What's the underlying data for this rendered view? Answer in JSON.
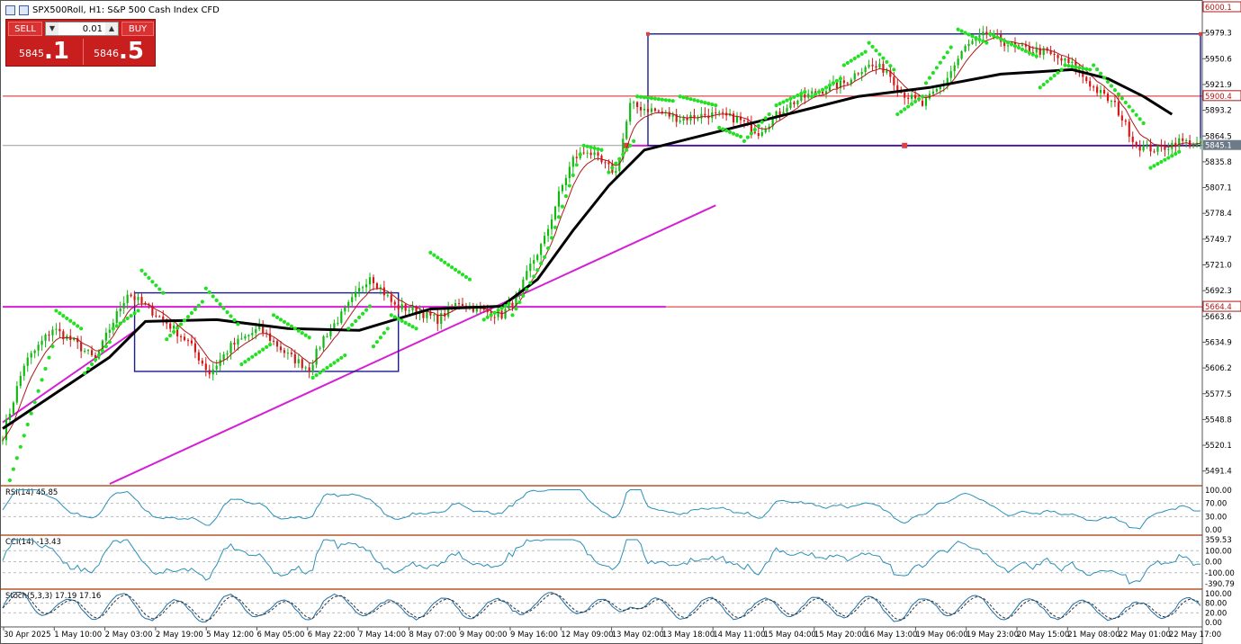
{
  "header": {
    "title": "SPX500Roll, H1:  S&P 500 Cash Index CFD"
  },
  "trade_panel": {
    "sell_label": "SELL",
    "buy_label": "BUY",
    "volume": "0.01",
    "bid_small": "5845",
    "bid_big": ".1",
    "ask_small": "5846",
    "ask_big": ".5"
  },
  "colors": {
    "bull": "#11b811",
    "bear": "#d01a1a",
    "sar": "#22e022",
    "ma_slow": "#000000",
    "ma_fast": "#b01818",
    "trendline": "#d51fd5",
    "box": "#1c1c94",
    "osc": "#2a8fb8"
  },
  "price_axis": {
    "labels": [
      "6000.1",
      "5979.3",
      "5950.6",
      "5921.9",
      "5893.2",
      "5864.5",
      "5835.8",
      "5807.1",
      "5778.4",
      "5749.7",
      "5721.0",
      "5692.3",
      "5663.6",
      "5634.9",
      "5606.2",
      "5577.5",
      "5548.8",
      "5520.1",
      "5491.4"
    ],
    "current_price": "5845.1",
    "level_5900": "5900.4",
    "level_5664": "5664.4"
  },
  "time_axis": {
    "labels": [
      "30 Apr 2025",
      "1 May 10:00",
      "2 May 03:00",
      "2 May 19:00",
      "5 May 12:00",
      "6 May 05:00",
      "6 May 22:00",
      "7 May 14:00",
      "8 May 07:00",
      "9 May 00:00",
      "9 May 16:00",
      "12 May 09:00",
      "13 May 02:00",
      "13 May 18:00",
      "14 May 11:00",
      "15 May 04:00",
      "15 May 20:00",
      "16 May 13:00",
      "19 May 06:00",
      "19 May 23:00",
      "20 May 15:00",
      "21 May 08:00",
      "22 May 01:00",
      "22 May 17:00"
    ]
  },
  "indicators": {
    "rsi": {
      "label": "RSI(14) 45.85",
      "levels": [
        "100.00",
        "70.00",
        "30.00",
        "0.00"
      ]
    },
    "cci": {
      "label": "CCI(14) -13.43",
      "levels": [
        "359.53",
        "100.00",
        "0.00",
        "-100.00",
        "-390.79"
      ]
    },
    "stoch": {
      "label": "Stoch(5,3,3) 17.19 17.16",
      "levels": [
        "100.00",
        "80.00",
        "20.00",
        "0.00"
      ]
    }
  },
  "chart_data": {
    "type": "candlestick",
    "symbol": "SPX500Roll",
    "timeframe": "H1",
    "ylim": [
      5466,
      6005
    ],
    "anchors": [
      [
        0,
        5520
      ],
      [
        6,
        5600
      ],
      [
        14,
        5640
      ],
      [
        20,
        5625
      ],
      [
        26,
        5605
      ],
      [
        30,
        5640
      ],
      [
        35,
        5680
      ],
      [
        40,
        5665
      ],
      [
        45,
        5650
      ],
      [
        52,
        5625
      ],
      [
        58,
        5590
      ],
      [
        64,
        5620
      ],
      [
        72,
        5640
      ],
      [
        80,
        5610
      ],
      [
        86,
        5595
      ],
      [
        90,
        5630
      ],
      [
        96,
        5660
      ],
      [
        103,
        5700
      ],
      [
        110,
        5665
      ],
      [
        116,
        5660
      ],
      [
        122,
        5650
      ],
      [
        128,
        5670
      ],
      [
        134,
        5660
      ],
      [
        140,
        5655
      ],
      [
        145,
        5680
      ],
      [
        148,
        5710
      ],
      [
        152,
        5740
      ],
      [
        156,
        5790
      ],
      [
        160,
        5830
      ],
      [
        164,
        5840
      ],
      [
        168,
        5825
      ],
      [
        172,
        5815
      ],
      [
        176,
        5890
      ],
      [
        182,
        5885
      ],
      [
        190,
        5875
      ],
      [
        198,
        5880
      ],
      [
        206,
        5875
      ],
      [
        212,
        5860
      ],
      [
        220,
        5890
      ],
      [
        228,
        5905
      ],
      [
        236,
        5915
      ],
      [
        242,
        5935
      ],
      [
        248,
        5930
      ],
      [
        252,
        5905
      ],
      [
        258,
        5890
      ],
      [
        264,
        5915
      ],
      [
        270,
        5955
      ],
      [
        276,
        5970
      ],
      [
        284,
        5955
      ],
      [
        292,
        5950
      ],
      [
        300,
        5935
      ],
      [
        306,
        5910
      ],
      [
        312,
        5890
      ],
      [
        318,
        5845
      ],
      [
        324,
        5840
      ],
      [
        330,
        5850
      ],
      [
        336,
        5845
      ]
    ],
    "ma_slow": [
      [
        0,
        5528
      ],
      [
        30,
        5608
      ],
      [
        40,
        5648
      ],
      [
        60,
        5650
      ],
      [
        80,
        5640
      ],
      [
        100,
        5638
      ],
      [
        120,
        5662
      ],
      [
        140,
        5665
      ],
      [
        150,
        5695
      ],
      [
        160,
        5750
      ],
      [
        170,
        5800
      ],
      [
        180,
        5840
      ],
      [
        200,
        5860
      ],
      [
        220,
        5880
      ],
      [
        240,
        5900
      ],
      [
        260,
        5910
      ],
      [
        280,
        5925
      ],
      [
        300,
        5930
      ],
      [
        310,
        5920
      ],
      [
        320,
        5900
      ],
      [
        328,
        5880
      ]
    ],
    "sar": [
      {
        "a": 2,
        "b": 14,
        "s": 5470,
        "e": 5620
      },
      {
        "a": 15,
        "b": 22,
        "s": 5660,
        "e": 5640
      },
      {
        "a": 23,
        "b": 30,
        "s": 5590,
        "e": 5625
      },
      {
        "a": 31,
        "b": 38,
        "s": 5640,
        "e": 5660
      },
      {
        "a": 39,
        "b": 45,
        "s": 5705,
        "e": 5680
      },
      {
        "a": 46,
        "b": 56,
        "s": 5628,
        "e": 5670
      },
      {
        "a": 57,
        "b": 66,
        "s": 5685,
        "e": 5645
      },
      {
        "a": 67,
        "b": 75,
        "s": 5600,
        "e": 5622
      },
      {
        "a": 76,
        "b": 86,
        "s": 5655,
        "e": 5630
      },
      {
        "a": 87,
        "b": 96,
        "s": 5585,
        "e": 5610
      },
      {
        "a": 97,
        "b": 103,
        "s": 5640,
        "e": 5665
      },
      {
        "a": 104,
        "b": 108,
        "s": 5620,
        "e": 5640
      },
      {
        "a": 109,
        "b": 116,
        "s": 5655,
        "e": 5640
      },
      {
        "a": 120,
        "b": 131,
        "s": 5725,
        "e": 5695
      },
      {
        "a": 135,
        "b": 142,
        "s": 5650,
        "e": 5668
      },
      {
        "a": 143,
        "b": 152,
        "s": 5655,
        "e": 5720
      },
      {
        "a": 153,
        "b": 162,
        "s": 5730,
        "e": 5835
      },
      {
        "a": 163,
        "b": 168,
        "s": 5845,
        "e": 5840
      },
      {
        "a": 170,
        "b": 177,
        "s": 5815,
        "e": 5850
      },
      {
        "a": 178,
        "b": 188,
        "s": 5900,
        "e": 5895
      },
      {
        "a": 190,
        "b": 200,
        "s": 5900,
        "e": 5890
      },
      {
        "a": 201,
        "b": 207,
        "s": 5865,
        "e": 5855
      },
      {
        "a": 208,
        "b": 215,
        "s": 5850,
        "e": 5880
      },
      {
        "a": 217,
        "b": 225,
        "s": 5890,
        "e": 5905
      },
      {
        "a": 227,
        "b": 235,
        "s": 5900,
        "e": 5920
      },
      {
        "a": 236,
        "b": 242,
        "s": 5935,
        "e": 5950
      },
      {
        "a": 243,
        "b": 250,
        "s": 5960,
        "e": 5930
      },
      {
        "a": 251,
        "b": 258,
        "s": 5880,
        "e": 5900
      },
      {
        "a": 259,
        "b": 266,
        "s": 5915,
        "e": 5955
      },
      {
        "a": 268,
        "b": 276,
        "s": 5975,
        "e": 5960
      },
      {
        "a": 277,
        "b": 290,
        "s": 5970,
        "e": 5945
      },
      {
        "a": 291,
        "b": 297,
        "s": 5910,
        "e": 5930
      },
      {
        "a": 298,
        "b": 305,
        "s": 5935,
        "e": 5930
      },
      {
        "a": 306,
        "b": 320,
        "s": 5935,
        "e": 5870
      },
      {
        "a": 322,
        "b": 330,
        "s": 5820,
        "e": 5838
      }
    ],
    "box1": {
      "x0": 37,
      "x1": 111,
      "top": 5680,
      "bottom": 5592
    },
    "box2": {
      "x0": 181,
      "x1": 336,
      "top": 5970,
      "bottom": 5845
    },
    "trendline_lower": {
      "x0": 30,
      "y0": 5466,
      "x1": 200,
      "y1": 5778
    },
    "trendline_early": {
      "x0": 0,
      "y0": 5535,
      "x1": 38,
      "y1": 5640
    },
    "support_line": {
      "x0": 0,
      "x1": 186,
      "y": 5664.4
    },
    "mid_line": {
      "x0": 175,
      "x1": 336,
      "y": 5845
    }
  }
}
